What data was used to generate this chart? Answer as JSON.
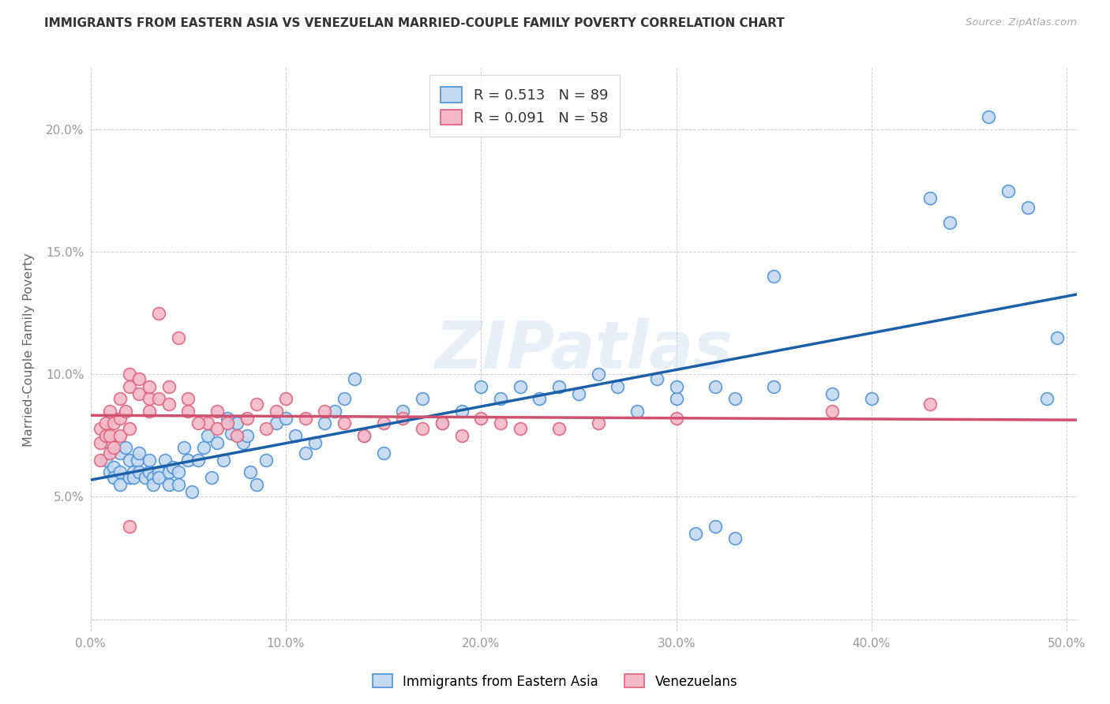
{
  "title": "IMMIGRANTS FROM EASTERN ASIA VS VENEZUELAN MARRIED-COUPLE FAMILY POVERTY CORRELATION CHART",
  "source": "Source: ZipAtlas.com",
  "ylabel": "Married-Couple Family Poverty",
  "xlim": [
    0.0,
    0.505
  ],
  "ylim": [
    -0.005,
    0.225
  ],
  "xticks": [
    0.0,
    0.1,
    0.2,
    0.3,
    0.4,
    0.5
  ],
  "yticks": [
    0.0,
    0.05,
    0.1,
    0.15,
    0.2
  ],
  "xticklabels": [
    "0.0%",
    "10.0%",
    "20.0%",
    "30.0%",
    "40.0%",
    "50.0%"
  ],
  "yticklabels": [
    "",
    "5.0%",
    "10.0%",
    "15.0%",
    "20.0%"
  ],
  "legend_label1": "Immigrants from Eastern Asia",
  "legend_label2": "Venezuelans",
  "R1": "0.513",
  "N1": "89",
  "R2": "0.091",
  "N2": "58",
  "color1": "#c5d9f0",
  "color2": "#f5b8c8",
  "edge_color1": "#4a90d9",
  "edge_color2": "#e0607a",
  "line_color1": "#1a5fa8",
  "line_color2": "#d05070",
  "background_color": "#ffffff",
  "watermark": "ZIPatlas",
  "scatter1_x": [
    0.008,
    0.01,
    0.01,
    0.012,
    0.012,
    0.015,
    0.015,
    0.015,
    0.018,
    0.02,
    0.02,
    0.022,
    0.022,
    0.024,
    0.025,
    0.025,
    0.028,
    0.03,
    0.03,
    0.032,
    0.032,
    0.035,
    0.035,
    0.038,
    0.04,
    0.04,
    0.042,
    0.045,
    0.045,
    0.048,
    0.05,
    0.052,
    0.055,
    0.058,
    0.06,
    0.062,
    0.065,
    0.068,
    0.07,
    0.072,
    0.075,
    0.078,
    0.08,
    0.082,
    0.085,
    0.09,
    0.095,
    0.1,
    0.105,
    0.11,
    0.115,
    0.12,
    0.125,
    0.13,
    0.135,
    0.14,
    0.15,
    0.16,
    0.17,
    0.18,
    0.19,
    0.2,
    0.21,
    0.22,
    0.23,
    0.24,
    0.25,
    0.26,
    0.27,
    0.28,
    0.29,
    0.3,
    0.32,
    0.33,
    0.35,
    0.38,
    0.4,
    0.43,
    0.44,
    0.46,
    0.47,
    0.48,
    0.49,
    0.495,
    0.35,
    0.3,
    0.31,
    0.32,
    0.33
  ],
  "scatter1_y": [
    0.065,
    0.072,
    0.06,
    0.062,
    0.058,
    0.06,
    0.068,
    0.055,
    0.07,
    0.058,
    0.065,
    0.06,
    0.058,
    0.065,
    0.068,
    0.06,
    0.058,
    0.06,
    0.065,
    0.058,
    0.055,
    0.06,
    0.058,
    0.065,
    0.06,
    0.055,
    0.062,
    0.06,
    0.055,
    0.07,
    0.065,
    0.052,
    0.065,
    0.07,
    0.075,
    0.058,
    0.072,
    0.065,
    0.082,
    0.076,
    0.08,
    0.072,
    0.075,
    0.06,
    0.055,
    0.065,
    0.08,
    0.082,
    0.075,
    0.068,
    0.072,
    0.08,
    0.085,
    0.09,
    0.098,
    0.075,
    0.068,
    0.085,
    0.09,
    0.08,
    0.085,
    0.095,
    0.09,
    0.095,
    0.09,
    0.095,
    0.092,
    0.1,
    0.095,
    0.085,
    0.098,
    0.09,
    0.095,
    0.09,
    0.095,
    0.092,
    0.09,
    0.172,
    0.162,
    0.205,
    0.175,
    0.168,
    0.09,
    0.115,
    0.14,
    0.095,
    0.035,
    0.038,
    0.033
  ],
  "scatter2_x": [
    0.005,
    0.005,
    0.005,
    0.008,
    0.008,
    0.01,
    0.01,
    0.01,
    0.012,
    0.012,
    0.015,
    0.015,
    0.015,
    0.018,
    0.02,
    0.02,
    0.02,
    0.025,
    0.025,
    0.03,
    0.03,
    0.03,
    0.035,
    0.04,
    0.04,
    0.05,
    0.05,
    0.06,
    0.065,
    0.065,
    0.07,
    0.075,
    0.08,
    0.085,
    0.09,
    0.095,
    0.1,
    0.11,
    0.12,
    0.13,
    0.14,
    0.15,
    0.16,
    0.17,
    0.18,
    0.19,
    0.2,
    0.21,
    0.22,
    0.24,
    0.26,
    0.3,
    0.38,
    0.43,
    0.035,
    0.045,
    0.02,
    0.055
  ],
  "scatter2_y": [
    0.065,
    0.072,
    0.078,
    0.075,
    0.08,
    0.068,
    0.075,
    0.085,
    0.07,
    0.08,
    0.075,
    0.082,
    0.09,
    0.085,
    0.1,
    0.095,
    0.078,
    0.092,
    0.098,
    0.09,
    0.095,
    0.085,
    0.09,
    0.088,
    0.095,
    0.085,
    0.09,
    0.08,
    0.078,
    0.085,
    0.08,
    0.075,
    0.082,
    0.088,
    0.078,
    0.085,
    0.09,
    0.082,
    0.085,
    0.08,
    0.075,
    0.08,
    0.082,
    0.078,
    0.08,
    0.075,
    0.082,
    0.08,
    0.078,
    0.078,
    0.08,
    0.082,
    0.085,
    0.088,
    0.125,
    0.115,
    0.038,
    0.08
  ]
}
